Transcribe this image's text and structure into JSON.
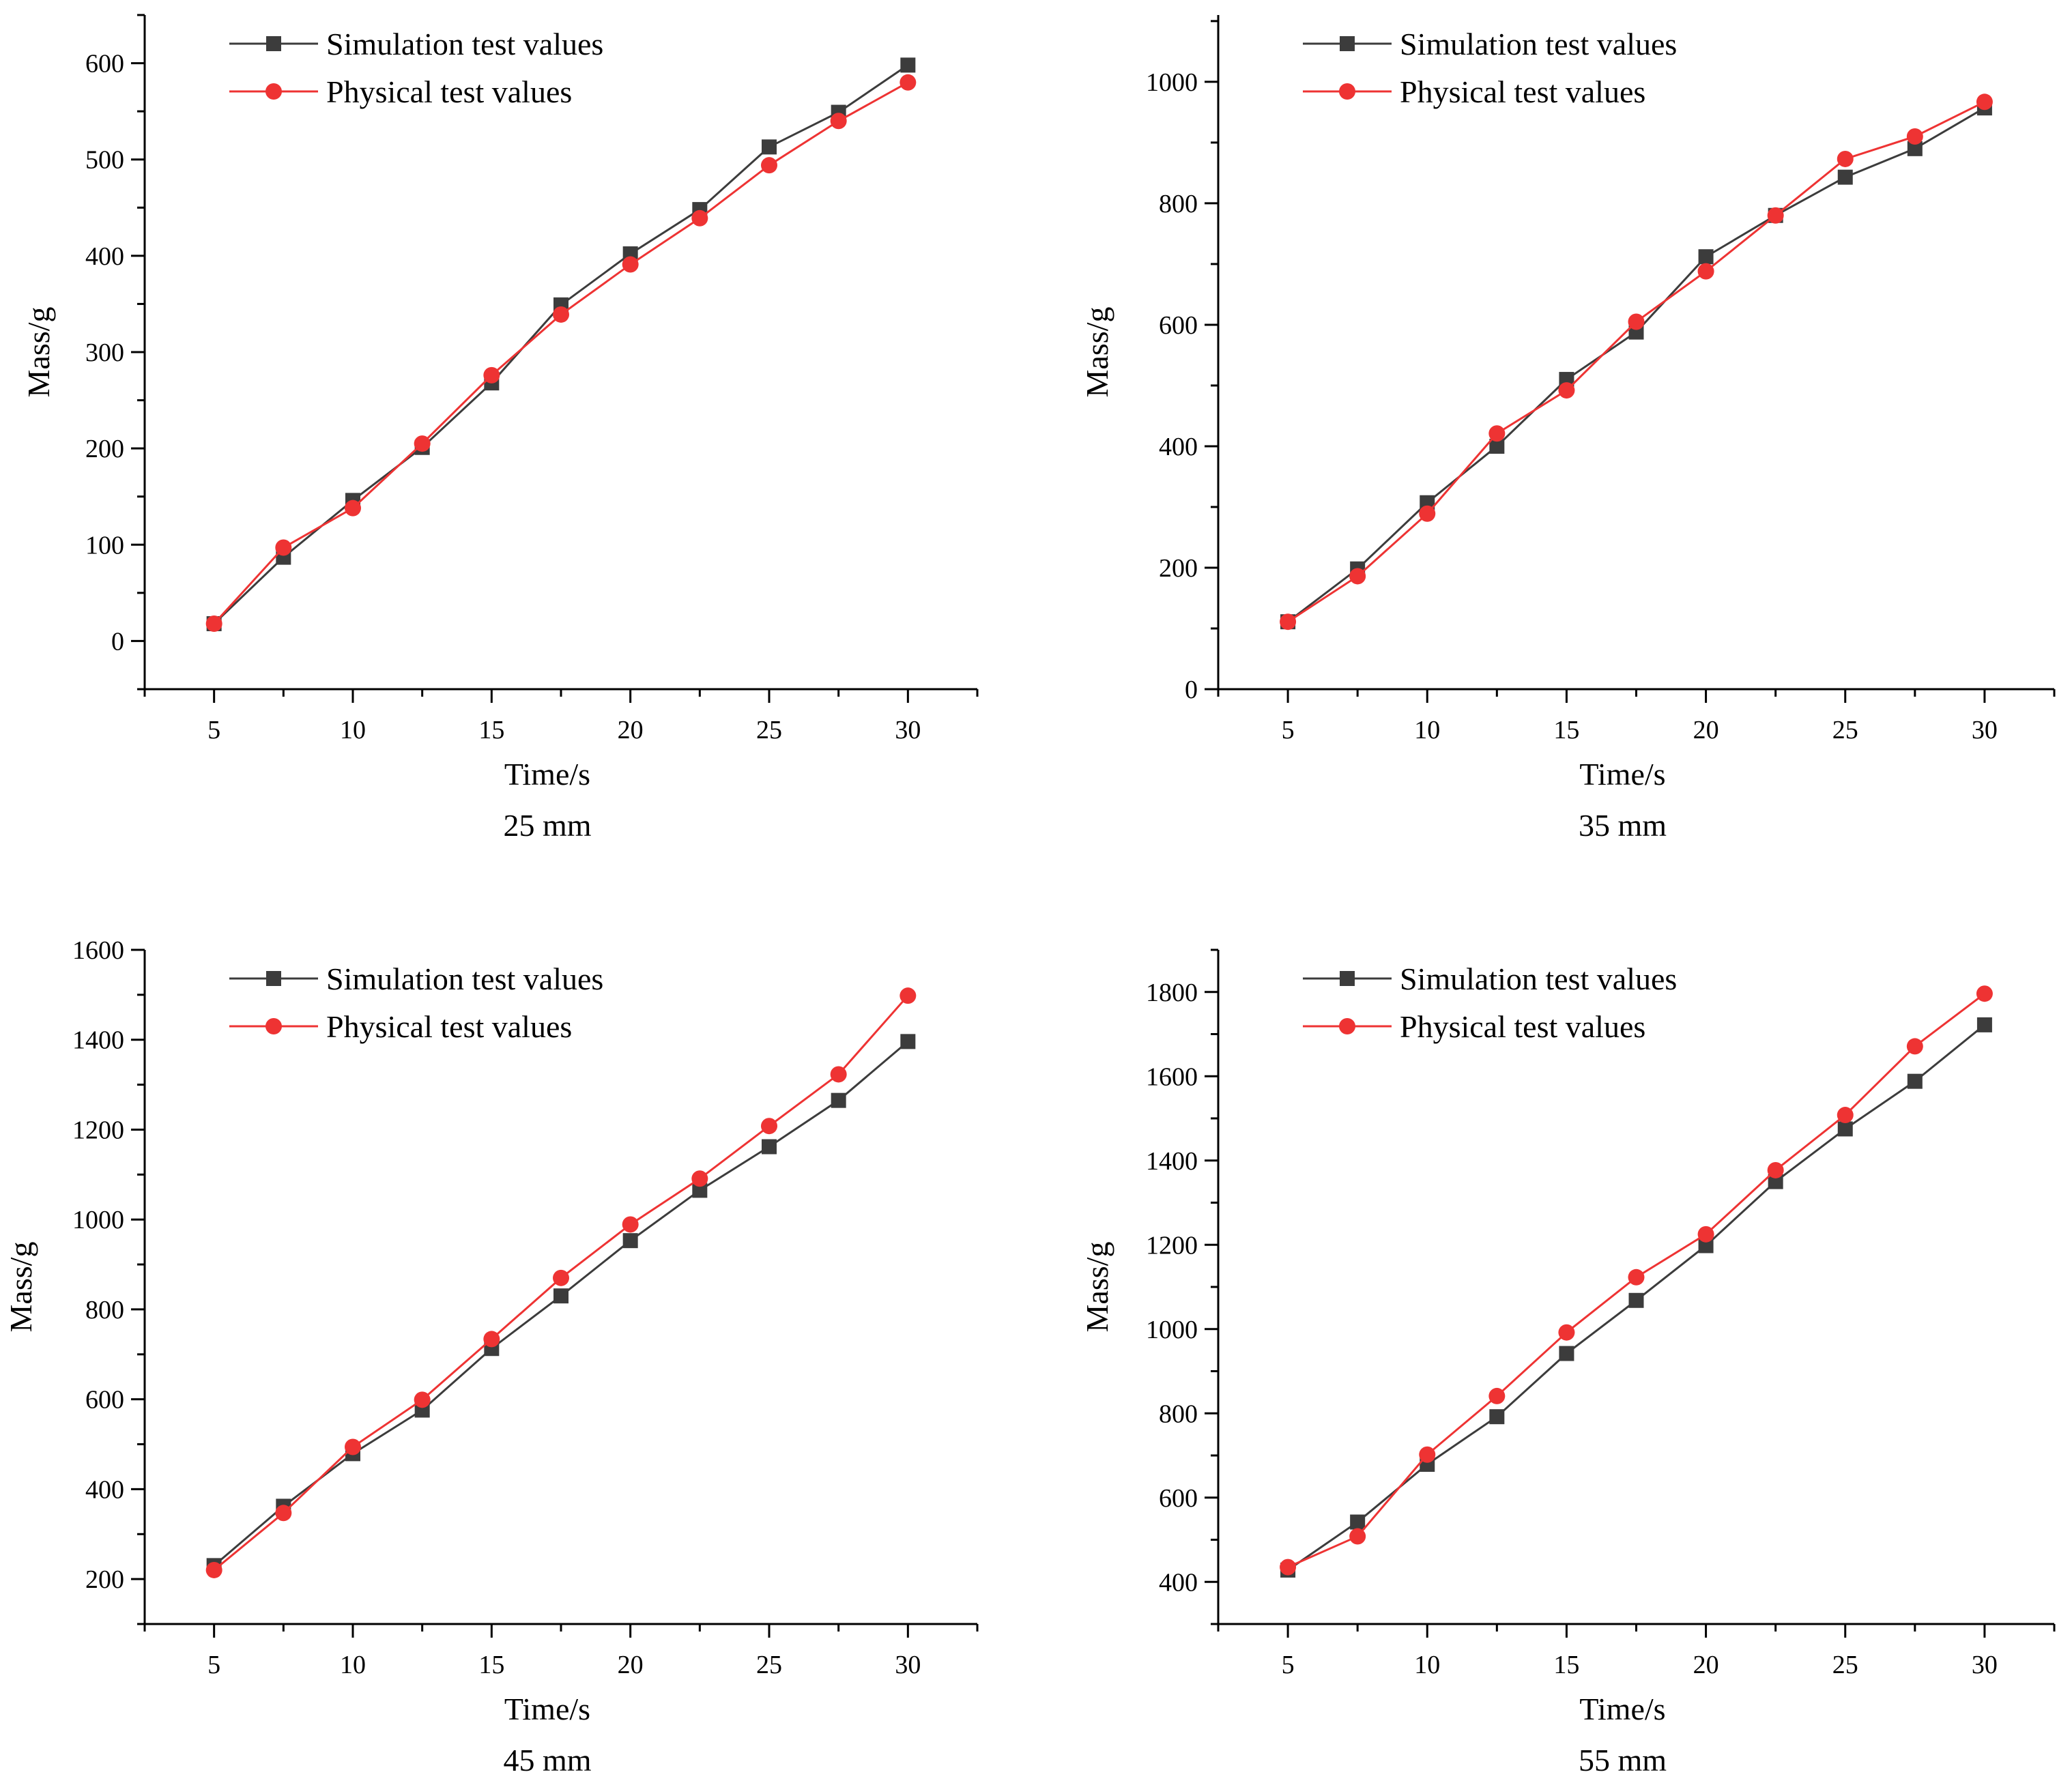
{
  "figure": {
    "colors": {
      "simulation": "#3c3c3c",
      "physical": "#ee3333",
      "axis": "#000000"
    }
  },
  "chart_data": [
    {
      "type": "line",
      "caption": "25 mm",
      "xlabel": "Time/s",
      "ylabel": "Mass/g",
      "xlim": [
        2.5,
        32.5
      ],
      "ylim": [
        -50,
        650
      ],
      "xticks": [
        5,
        10,
        15,
        20,
        25,
        30
      ],
      "yticks": [
        0,
        100,
        200,
        300,
        400,
        500,
        600
      ],
      "legend_position": "top-left",
      "x": [
        5,
        7.5,
        10,
        12.5,
        15,
        17.5,
        20,
        22.5,
        25,
        27.5,
        30
      ],
      "series": [
        {
          "name": "Simulation test values",
          "marker": "square",
          "color": "#3c3c3c",
          "values": [
            18,
            87,
            146,
            201,
            268,
            349,
            402,
            448,
            513,
            549,
            598
          ]
        },
        {
          "name": "Physical test values",
          "marker": "circle",
          "color": "#ee3333",
          "values": [
            18,
            97,
            138,
            205,
            276,
            339,
            391,
            439,
            494,
            540,
            580
          ]
        }
      ]
    },
    {
      "type": "line",
      "caption": "35 mm",
      "xlabel": "Time/s",
      "ylabel": "Mass/g",
      "xlim": [
        2.5,
        32.5
      ],
      "ylim": [
        0,
        1110
      ],
      "xticks": [
        5,
        10,
        15,
        20,
        25,
        30
      ],
      "yticks": [
        0,
        200,
        400,
        600,
        800,
        1000
      ],
      "legend_position": "top-left",
      "x": [
        5,
        7.5,
        10,
        12.5,
        15,
        17.5,
        20,
        22.5,
        25,
        27.5,
        30
      ],
      "series": [
        {
          "name": "Simulation test values",
          "marker": "square",
          "color": "#3c3c3c",
          "values": [
            111,
            198,
            307,
            400,
            510,
            588,
            712,
            780,
            843,
            890,
            957
          ]
        },
        {
          "name": "Physical test values",
          "marker": "circle",
          "color": "#ee3333",
          "values": [
            111,
            186,
            289,
            421,
            492,
            605,
            688,
            780,
            873,
            910,
            967
          ]
        }
      ]
    },
    {
      "type": "line",
      "caption": "45 mm",
      "xlabel": "Time/s",
      "ylabel": "Mass/g",
      "xlim": [
        2.5,
        32.5
      ],
      "ylim": [
        100,
        1600
      ],
      "xticks": [
        5,
        10,
        15,
        20,
        25,
        30
      ],
      "yticks": [
        200,
        400,
        600,
        800,
        1000,
        1200,
        1400,
        1600
      ],
      "legend_position": "top-left",
      "x": [
        5,
        7.5,
        10,
        12.5,
        15,
        17.5,
        20,
        22.5,
        25,
        27.5,
        30
      ],
      "series": [
        {
          "name": "Simulation test values",
          "marker": "square",
          "color": "#3c3c3c",
          "values": [
            230,
            362,
            479,
            576,
            713,
            830,
            953,
            1065,
            1162,
            1265,
            1396
          ]
        },
        {
          "name": "Physical test values",
          "marker": "circle",
          "color": "#ee3333",
          "values": [
            220,
            347,
            494,
            599,
            734,
            870,
            989,
            1091,
            1208,
            1323,
            1498
          ]
        }
      ]
    },
    {
      "type": "line",
      "caption": "55 mm",
      "xlabel": "Time/s",
      "ylabel": "Mass/g",
      "xlim": [
        2.5,
        32.5
      ],
      "ylim": [
        300,
        1900
      ],
      "xticks": [
        5,
        10,
        15,
        20,
        25,
        30
      ],
      "yticks": [
        400,
        600,
        800,
        1000,
        1200,
        1400,
        1600,
        1800
      ],
      "legend_position": "top-left",
      "x": [
        5,
        7.5,
        10,
        12.5,
        15,
        17.5,
        20,
        22.5,
        25,
        27.5,
        30
      ],
      "series": [
        {
          "name": "Simulation test values",
          "marker": "square",
          "color": "#3c3c3c",
          "values": [
            428,
            542,
            679,
            792,
            942,
            1068,
            1198,
            1350,
            1475,
            1588,
            1722
          ]
        },
        {
          "name": "Physical test values",
          "marker": "circle",
          "color": "#ee3333",
          "values": [
            435,
            508,
            702,
            841,
            992,
            1123,
            1225,
            1377,
            1508,
            1671,
            1796
          ]
        }
      ]
    }
  ]
}
